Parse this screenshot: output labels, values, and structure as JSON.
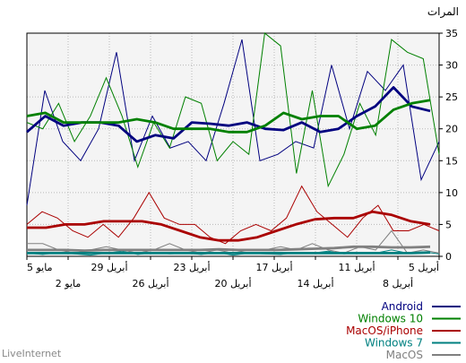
{
  "chart_data": {
    "type": "line",
    "ylabel": "المرات",
    "ylim": [
      0,
      35
    ],
    "yticks": [
      "0",
      "5",
      "10",
      "15",
      "20",
      "25",
      "30",
      "35"
    ],
    "x_ticks_upper": [
      "5 مايو",
      "29 أبريل",
      "23 أبريل",
      "17 أبريل",
      "11 أبريل",
      "5 أبريل"
    ],
    "x_ticks_lower": [
      "2 مايو",
      "26 أبريل",
      "20 أبريل",
      "14 أبريل",
      "8 أبريل"
    ],
    "grid": true,
    "legend_position": "bottom-right",
    "series": [
      {
        "name": "Android",
        "color": "#00007f",
        "daily": [
          8,
          26,
          18,
          15,
          20,
          32,
          15,
          22,
          17,
          18,
          15,
          24,
          34,
          15,
          16,
          18,
          17,
          30,
          20,
          29,
          26,
          30,
          12,
          18
        ],
        "trend": [
          19.5,
          22,
          20.5,
          21,
          21,
          20.5,
          18,
          19,
          18.5,
          21,
          20.8,
          20.5,
          21,
          20,
          19.8,
          21,
          19.5,
          20,
          22,
          23.5,
          26.5,
          23.5,
          22.8
        ]
      },
      {
        "name": "Windows 10",
        "color": "#008000",
        "daily": [
          21,
          20,
          24,
          18,
          22,
          28,
          22,
          14,
          21,
          17,
          25,
          24,
          15,
          18,
          16,
          35,
          33,
          13,
          26,
          11,
          16,
          24,
          19,
          34,
          32,
          31,
          16
        ],
        "trend": [
          22,
          22.5,
          21,
          21,
          21,
          21,
          21.5,
          21,
          20,
          20,
          20,
          19.5,
          19.5,
          20.5,
          22.5,
          21.5,
          22,
          22,
          20,
          20.5,
          23,
          24,
          24.5
        ]
      },
      {
        "name": "MacOS/iPhone",
        "color": "#aa0000",
        "daily": [
          5,
          7,
          6,
          4,
          3,
          5,
          3,
          6,
          10,
          6,
          5,
          5,
          3,
          2,
          4,
          5,
          4,
          6,
          11,
          7,
          5,
          3,
          6,
          8,
          4,
          4,
          5,
          4
        ],
        "trend": [
          4.5,
          4.5,
          5,
          5,
          5.5,
          5.5,
          5.5,
          5,
          4,
          3,
          2.5,
          2.5,
          3,
          4,
          5,
          5.8,
          6,
          6,
          7,
          6.5,
          5.5,
          5
        ]
      },
      {
        "name": "Windows 7",
        "color": "#008080",
        "daily": [
          0.5,
          0.3,
          0.6,
          0.4,
          0.2,
          0.5,
          0.8,
          0.3,
          0.6,
          0.4,
          0.5,
          0.3,
          0.6,
          0.2,
          0.5,
          0.4,
          0.3,
          0.6,
          0.5,
          0.8,
          0.4,
          0.6,
          0.5,
          1,
          0.5,
          0.7,
          0.4
        ],
        "trend": [
          0.5,
          0.5,
          0.5,
          0.5,
          0.5,
          0.5,
          0.5,
          0.5,
          0.5,
          0.5,
          0.5,
          0.5,
          0.5,
          0.5,
          0.5,
          0.5,
          0.5,
          0.5,
          0.5,
          0.5,
          0.5,
          0.6
        ]
      },
      {
        "name": "MacOS",
        "color": "#808080",
        "daily": [
          2,
          2,
          1,
          0.5,
          1,
          1.5,
          1,
          0.5,
          1,
          2,
          1,
          0.5,
          1,
          0.5,
          1,
          1,
          1.5,
          1,
          2,
          1,
          0.5,
          1.5,
          1,
          4,
          0.5,
          1,
          0.5
        ],
        "trend": [
          1,
          1,
          1,
          0.9,
          1,
          1,
          1,
          1,
          1,
          1,
          1.1,
          1,
          1,
          1,
          1.1,
          1.2,
          1.3,
          1.5,
          1.5,
          1.4,
          1.4,
          1.5
        ]
      }
    ]
  },
  "logo": "LiveInternet"
}
